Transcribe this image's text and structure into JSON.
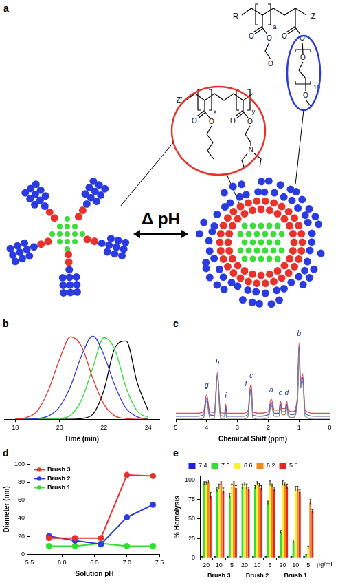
{
  "diagram": {
    "panel": "a",
    "arrow_label": "Δ pH",
    "polymer_1": {
      "end_left": "R",
      "end_right": "Z",
      "repeat": "a",
      "peg_repeat": "19",
      "atoms": [
        "O",
        "O",
        "O",
        "O",
        "O",
        "O",
        "O"
      ]
    },
    "polymer_2": {
      "end_left": "Z'",
      "repeats": [
        "x",
        "y"
      ],
      "atoms": [
        "O",
        "O",
        "O",
        "O",
        "N"
      ]
    }
  },
  "chart_data": [
    {
      "panel": "b",
      "type": "line",
      "x_label": "Time (min)",
      "xlim": [
        17.5,
        24.5
      ],
      "xticks": [
        18,
        20,
        22,
        24
      ],
      "ylim": [
        0,
        1.05
      ],
      "tick_labels": "x",
      "grid": false,
      "x": [
        18,
        18.5,
        19,
        19.5,
        20,
        20.5,
        21,
        21.5,
        22,
        22.5,
        23,
        23.5,
        24
      ],
      "series": [
        {
          "color": "#e8322b",
          "values": [
            0,
            0.02,
            0.1,
            0.35,
            0.72,
            0.99,
            0.87,
            0.49,
            0.18,
            0.04,
            0.01,
            0,
            0
          ]
        },
        {
          "color": "#2a3be0",
          "values": [
            0,
            0,
            0.01,
            0.04,
            0.15,
            0.4,
            0.77,
            1.0,
            0.77,
            0.4,
            0.13,
            0.03,
            0
          ]
        },
        {
          "color": "#33dd33",
          "values": [
            0,
            0,
            0,
            0,
            0.01,
            0.05,
            0.24,
            0.62,
            0.98,
            0.83,
            0.38,
            0.1,
            0.02
          ]
        },
        {
          "color": "#000000",
          "values": [
            0,
            0,
            0,
            0,
            0,
            0,
            0.01,
            0.06,
            0.35,
            0.86,
            0.94,
            0.44,
            0.1
          ]
        }
      ]
    },
    {
      "panel": "c",
      "type": "line",
      "x_label": "Chemical Shift (ppm)",
      "xlim": [
        5,
        0
      ],
      "xticks": [
        5,
        4,
        3,
        2,
        1,
        0
      ],
      "ylim": [
        0,
        1.15
      ],
      "tick_labels": "x",
      "grid": false,
      "x": [
        5,
        4.3,
        4.1,
        4.0,
        3.9,
        3.75,
        3.65,
        3.55,
        3.42,
        3.38,
        3.34,
        2.8,
        2.65,
        2.6,
        2.55,
        2.5,
        2.3,
        2.0,
        1.9,
        1.8,
        1.65,
        1.6,
        1.55,
        1.45,
        1.4,
        1.35,
        1.2,
        1.05,
        1.0,
        0.95,
        0.88,
        0.8,
        0.5,
        0
      ],
      "series": [
        {
          "color": "#888888",
          "values": [
            0,
            0,
            0.02,
            0.24,
            0.02,
            0.01,
            0.55,
            0.01,
            0,
            0.11,
            0,
            0,
            0.04,
            0.29,
            0.36,
            0.02,
            0,
            0.02,
            0.18,
            0.04,
            0.04,
            0.16,
            0.06,
            0.06,
            0.16,
            0.04,
            0.02,
            0.21,
            0.9,
            0.41,
            0.5,
            0.04,
            0,
            0
          ]
        },
        {
          "color": "#4a5ad0",
          "values": [
            0.04,
            0.04,
            0.06,
            0.28,
            0.06,
            0.05,
            0.58,
            0.05,
            0.04,
            0.15,
            0.04,
            0.04,
            0.08,
            0.33,
            0.4,
            0.06,
            0.04,
            0.06,
            0.22,
            0.08,
            0.08,
            0.2,
            0.1,
            0.1,
            0.2,
            0.08,
            0.06,
            0.25,
            0.95,
            0.45,
            0.55,
            0.08,
            0.04,
            0.04
          ]
        },
        {
          "color": "#e05050",
          "values": [
            0.08,
            0.08,
            0.1,
            0.33,
            0.1,
            0.09,
            0.62,
            0.09,
            0.08,
            0.2,
            0.08,
            0.08,
            0.12,
            0.38,
            0.46,
            0.1,
            0.08,
            0.1,
            0.27,
            0.12,
            0.12,
            0.24,
            0.14,
            0.14,
            0.24,
            0.12,
            0.1,
            0.3,
            1.0,
            0.5,
            0.6,
            0.12,
            0.08,
            0.08
          ]
        }
      ],
      "annotations": [
        {
          "text": "g",
          "x": 4.0,
          "y": 0.4
        },
        {
          "text": "h",
          "x": 3.65,
          "y": 0.7
        },
        {
          "text": "i",
          "x": 3.38,
          "y": 0.26
        },
        {
          "text": "f",
          "x": 2.72,
          "y": 0.42
        },
        {
          "text": "c",
          "x": 2.55,
          "y": 0.52
        },
        {
          "text": "a",
          "x": 1.9,
          "y": 0.33
        },
        {
          "text": "c",
          "x": 1.6,
          "y": 0.3
        },
        {
          "text": "d",
          "x": 1.4,
          "y": 0.3
        },
        {
          "text": "b",
          "x": 1.0,
          "y": 1.08
        }
      ]
    },
    {
      "panel": "d",
      "type": "line",
      "x_label": "Solution pH",
      "y_label": "Diameter (nm)",
      "xlim": [
        5.5,
        7.5
      ],
      "xticks": [
        5.5,
        {
          "value": 6,
          "label": "6.0"
        },
        6.5,
        {
          "value": 7,
          "label": "7.0"
        },
        7.5
      ],
      "ylim": [
        0,
        100
      ],
      "yticks": [
        0,
        20,
        40,
        60,
        80,
        100
      ],
      "grid": false,
      "legend": "upper left",
      "x": [
        5.8,
        6.2,
        6.6,
        7.0,
        7.4
      ],
      "series": [
        {
          "name": "Brush 3",
          "color": "#e8322b",
          "marker": "circle",
          "values": [
            18,
            18,
            18,
            88,
            87
          ]
        },
        {
          "name": "Brush 2",
          "color": "#2a3be0",
          "marker": "circle",
          "values": [
            20,
            15,
            11,
            41,
            55
          ]
        },
        {
          "name": "Brush 1",
          "color": "#33dd33",
          "marker": "circle",
          "values": [
            9,
            9,
            12,
            9,
            9
          ]
        }
      ]
    },
    {
      "panel": "e",
      "type": "bar",
      "y_label": "% Hemolysis",
      "x_unit_label": "µg/mL",
      "ylim": [
        0,
        105
      ],
      "yticks": [
        0,
        25,
        50,
        75,
        100
      ],
      "grid": false,
      "legend": "top",
      "groups": [
        {
          "name": "Brush 3",
          "categories": [
            "20",
            "10",
            "5"
          ]
        },
        {
          "name": "Brush 2",
          "categories": [
            "20",
            "10",
            "5"
          ]
        },
        {
          "name": "Brush 1",
          "categories": [
            "20",
            "10",
            "5"
          ]
        }
      ],
      "series": [
        {
          "name": "7.4",
          "color": "#2020e0",
          "values": [
            1,
            1,
            1,
            1,
            1,
            1,
            1,
            1,
            1
          ],
          "errors": [
            0.5,
            0.5,
            0.5,
            0.5,
            0.5,
            0.5,
            0.5,
            0.5,
            0.5
          ]
        },
        {
          "name": "7.0",
          "color": "#33dd33",
          "values": [
            96,
            88,
            80,
            92,
            91,
            71,
            33,
            21,
            3
          ],
          "errors": [
            2,
            3,
            3,
            3,
            2,
            2,
            2,
            2,
            1
          ]
        },
        {
          "name": "6.6",
          "color": "#ffee33",
          "values": [
            96,
            92,
            92,
            95,
            96,
            96,
            96,
            89,
            13
          ],
          "errors": [
            2,
            3,
            3,
            2,
            2,
            3,
            3,
            3,
            2
          ]
        },
        {
          "name": "6.2",
          "color": "#f08a1e",
          "values": [
            98,
            96,
            96,
            92,
            94,
            93,
            95,
            89,
            72
          ],
          "errors": [
            2,
            2,
            2,
            3,
            2,
            2,
            2,
            3,
            3
          ]
        },
        {
          "name": "5.8",
          "color": "#e0281e",
          "values": [
            80,
            86,
            90,
            88,
            90,
            88,
            92,
            85,
            60
          ],
          "errors": [
            4,
            4,
            3,
            3,
            3,
            3,
            3,
            3,
            2
          ]
        }
      ]
    }
  ]
}
